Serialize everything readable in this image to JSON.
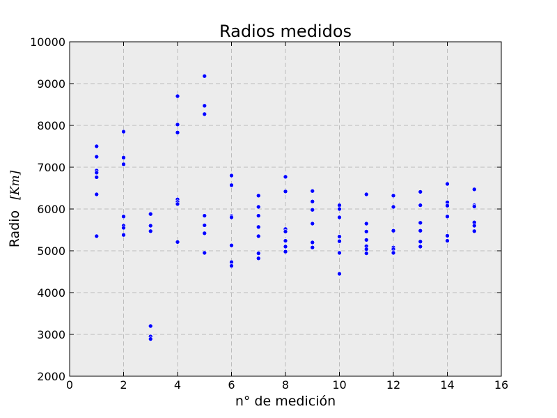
{
  "chart_data": {
    "type": "scatter",
    "title": "Radios medidos",
    "xlabel": "n° de medición",
    "ylabel": "Radio",
    "ylabel_unit": "[Km]",
    "xlim": [
      0,
      16
    ],
    "ylim": [
      2000,
      10000
    ],
    "xticks": [
      0,
      2,
      4,
      6,
      8,
      10,
      12,
      14,
      16
    ],
    "yticks": [
      2000,
      3000,
      4000,
      5000,
      6000,
      7000,
      8000,
      9000,
      10000
    ],
    "grid": true,
    "background_color": "#ececec",
    "grid_color": "#bdbdbd",
    "marker_color": "#0000ff",
    "points": [
      {
        "x": 1,
        "y": 7500
      },
      {
        "x": 1,
        "y": 7250
      },
      {
        "x": 1,
        "y": 6920
      },
      {
        "x": 1,
        "y": 6870
      },
      {
        "x": 1,
        "y": 6760
      },
      {
        "x": 1,
        "y": 6350
      },
      {
        "x": 1,
        "y": 5350
      },
      {
        "x": 2,
        "y": 7850
      },
      {
        "x": 2,
        "y": 7230
      },
      {
        "x": 2,
        "y": 7070
      },
      {
        "x": 2,
        "y": 5820
      },
      {
        "x": 2,
        "y": 5600
      },
      {
        "x": 2,
        "y": 5550
      },
      {
        "x": 2,
        "y": 5380
      },
      {
        "x": 3,
        "y": 5880
      },
      {
        "x": 3,
        "y": 5600
      },
      {
        "x": 3,
        "y": 5470
      },
      {
        "x": 3,
        "y": 3200
      },
      {
        "x": 3,
        "y": 2950
      },
      {
        "x": 3,
        "y": 2890
      },
      {
        "x": 4,
        "y": 8700
      },
      {
        "x": 4,
        "y": 8020
      },
      {
        "x": 4,
        "y": 7830
      },
      {
        "x": 4,
        "y": 6230
      },
      {
        "x": 4,
        "y": 6170
      },
      {
        "x": 4,
        "y": 6120
      },
      {
        "x": 4,
        "y": 5210
      },
      {
        "x": 5,
        "y": 9180
      },
      {
        "x": 5,
        "y": 8470
      },
      {
        "x": 5,
        "y": 8270
      },
      {
        "x": 5,
        "y": 5840
      },
      {
        "x": 5,
        "y": 5610
      },
      {
        "x": 5,
        "y": 5420
      },
      {
        "x": 5,
        "y": 4950
      },
      {
        "x": 6,
        "y": 6800
      },
      {
        "x": 6,
        "y": 6570
      },
      {
        "x": 6,
        "y": 5830
      },
      {
        "x": 6,
        "y": 5800
      },
      {
        "x": 6,
        "y": 5130
      },
      {
        "x": 6,
        "y": 4730
      },
      {
        "x": 6,
        "y": 4640
      },
      {
        "x": 7,
        "y": 6320
      },
      {
        "x": 7,
        "y": 6050
      },
      {
        "x": 7,
        "y": 5840
      },
      {
        "x": 7,
        "y": 5570
      },
      {
        "x": 7,
        "y": 5350
      },
      {
        "x": 7,
        "y": 4940
      },
      {
        "x": 7,
        "y": 4820
      },
      {
        "x": 8,
        "y": 6770
      },
      {
        "x": 8,
        "y": 6420
      },
      {
        "x": 8,
        "y": 5520
      },
      {
        "x": 8,
        "y": 5460
      },
      {
        "x": 8,
        "y": 5240
      },
      {
        "x": 8,
        "y": 5100
      },
      {
        "x": 8,
        "y": 4980
      },
      {
        "x": 9,
        "y": 6430
      },
      {
        "x": 9,
        "y": 6180
      },
      {
        "x": 9,
        "y": 5980
      },
      {
        "x": 9,
        "y": 5650
      },
      {
        "x": 9,
        "y": 5200
      },
      {
        "x": 9,
        "y": 5080
      },
      {
        "x": 10,
        "y": 6090
      },
      {
        "x": 10,
        "y": 6000
      },
      {
        "x": 10,
        "y": 5800
      },
      {
        "x": 10,
        "y": 5340
      },
      {
        "x": 10,
        "y": 5230
      },
      {
        "x": 10,
        "y": 4950
      },
      {
        "x": 10,
        "y": 4450
      },
      {
        "x": 11,
        "y": 6350
      },
      {
        "x": 11,
        "y": 5650
      },
      {
        "x": 11,
        "y": 5460
      },
      {
        "x": 11,
        "y": 5260
      },
      {
        "x": 11,
        "y": 5110
      },
      {
        "x": 11,
        "y": 5040
      },
      {
        "x": 11,
        "y": 4940
      },
      {
        "x": 12,
        "y": 6320
      },
      {
        "x": 12,
        "y": 6050
      },
      {
        "x": 12,
        "y": 5480
      },
      {
        "x": 12,
        "y": 5080
      },
      {
        "x": 12,
        "y": 5040
      },
      {
        "x": 12,
        "y": 4970
      },
      {
        "x": 12,
        "y": 4950
      },
      {
        "x": 13,
        "y": 6410
      },
      {
        "x": 13,
        "y": 6100
      },
      {
        "x": 13,
        "y": 6090
      },
      {
        "x": 13,
        "y": 5670
      },
      {
        "x": 13,
        "y": 5480
      },
      {
        "x": 13,
        "y": 5220
      },
      {
        "x": 13,
        "y": 5100
      },
      {
        "x": 14,
        "y": 6600
      },
      {
        "x": 14,
        "y": 6160
      },
      {
        "x": 14,
        "y": 6080
      },
      {
        "x": 14,
        "y": 5820
      },
      {
        "x": 14,
        "y": 5360
      },
      {
        "x": 14,
        "y": 5240
      },
      {
        "x": 15,
        "y": 6470
      },
      {
        "x": 15,
        "y": 6090
      },
      {
        "x": 15,
        "y": 6060
      },
      {
        "x": 15,
        "y": 5680
      },
      {
        "x": 15,
        "y": 5600
      },
      {
        "x": 15,
        "y": 5470
      }
    ]
  }
}
